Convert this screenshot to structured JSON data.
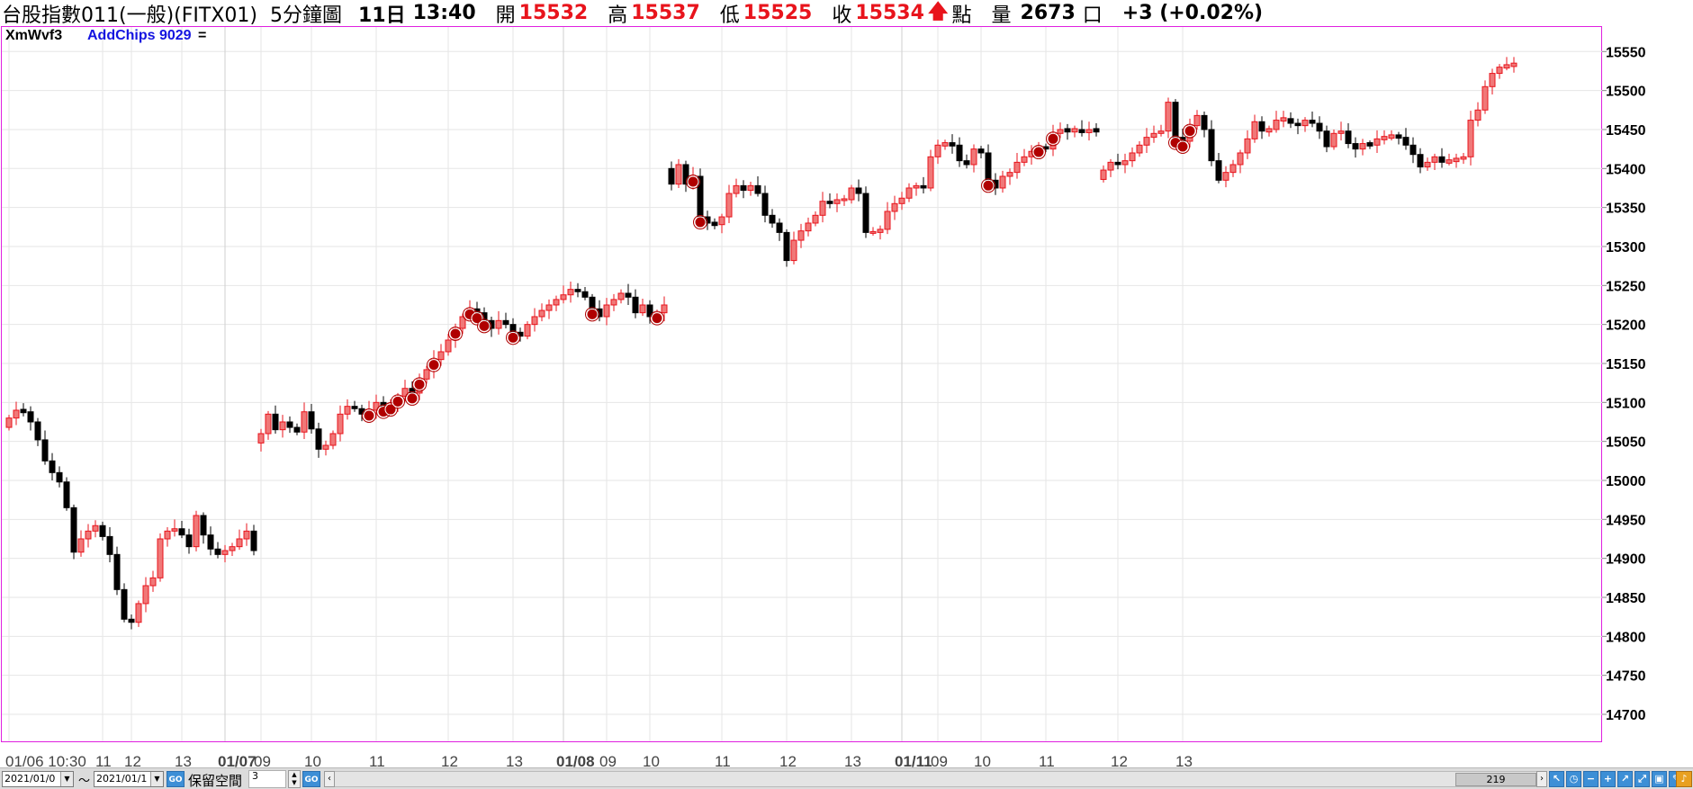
{
  "header": {
    "instrument": "台股指數011(一般)(FITX01)",
    "period": "5分鐘圖",
    "day": "11日",
    "time": "13:40",
    "open_label": "開",
    "open_value": "15532",
    "high_label": "高",
    "high_value": "15537",
    "low_label": "低",
    "low_value": "15525",
    "close_label": "收",
    "close_value": "15534",
    "points_label": "點",
    "volume_label": "量",
    "volume_value": "2673",
    "volume_unit": "口",
    "change": "+3 (+0.02%)",
    "up_color": "#e8141c"
  },
  "indicator": {
    "name": "XmWvf3",
    "chips_label": "AddChips 9029",
    "suffix": "="
  },
  "bottom_bar": {
    "start_date": "2021/01/0",
    "end_date": "2021/01/1",
    "range_sep": "～",
    "go_label": "GO",
    "reserve_label": "保留空間",
    "reserve_value": "3",
    "scroll_position": "219",
    "tools": [
      "cursor-icon",
      "clock-icon",
      "zoom-out-icon",
      "crosshair-icon",
      "line-chart-icon",
      "expand-icon",
      "window-icon",
      "pencil-icon",
      "alert-icon"
    ]
  },
  "chart_data": {
    "type": "candlestick",
    "ylim": [
      14660,
      15590
    ],
    "y_ticks": [
      14700,
      14750,
      14800,
      14850,
      14900,
      14950,
      15000,
      15050,
      15100,
      15150,
      15200,
      15250,
      15300,
      15350,
      15400,
      15450,
      15500,
      15550
    ],
    "x_labels": [
      {
        "bar": 0,
        "text": "01/06 10:30",
        "bold": false
      },
      {
        "bar": 13,
        "text": "11",
        "bold": false
      },
      {
        "bar": 17,
        "text": "12",
        "bold": false
      },
      {
        "bar": 24,
        "text": "13",
        "bold": false
      },
      {
        "bar": 30,
        "text": "01/07",
        "bold": true
      },
      {
        "bar": 35,
        "text": "09",
        "bold": false
      },
      {
        "bar": 42,
        "text": "10",
        "bold": false
      },
      {
        "bar": 51,
        "text": "11",
        "bold": false
      },
      {
        "bar": 61,
        "text": "12",
        "bold": false
      },
      {
        "bar": 70,
        "text": "13",
        "bold": false
      },
      {
        "bar": 77,
        "text": "01/08",
        "bold": true
      },
      {
        "bar": 83,
        "text": "09",
        "bold": false
      },
      {
        "bar": 89,
        "text": "10",
        "bold": false
      },
      {
        "bar": 99,
        "text": "11",
        "bold": false
      },
      {
        "bar": 108,
        "text": "12",
        "bold": false
      },
      {
        "bar": 117,
        "text": "13",
        "bold": false
      },
      {
        "bar": 124,
        "text": "01/11",
        "bold": true
      },
      {
        "bar": 129,
        "text": "09",
        "bold": false
      },
      {
        "bar": 135,
        "text": "10",
        "bold": false
      },
      {
        "bar": 144,
        "text": "11",
        "bold": false
      },
      {
        "bar": 154,
        "text": "12",
        "bold": false
      },
      {
        "bar": 163,
        "text": "13",
        "bold": false
      }
    ],
    "session_starts": [
      30,
      77,
      124
    ],
    "up_color": "#e8141c",
    "down_color": "#000000",
    "signal_color": "#b00000",
    "series": [
      {
        "name": "01/06",
        "x_start": 0,
        "closes": [
          15080,
          15090,
          15088,
          15075,
          15052,
          15025,
          15010,
          14998,
          14965,
          14908,
          14925,
          14935,
          14942,
          14928,
          14905,
          14860,
          14822,
          14818,
          14842,
          14865,
          14875,
          14925,
          14935,
          14938,
          14930,
          14915,
          14955,
          14930,
          14912,
          14905,
          14910,
          14915,
          14925,
          14935,
          14910
        ]
      },
      {
        "name": "01/07",
        "x_start": 35,
        "closes": [
          15060,
          15085,
          15065,
          15075,
          15068,
          15062,
          15088,
          15066,
          15040,
          15045,
          15060,
          15085,
          15095,
          15092,
          15085,
          15090,
          15100,
          15095,
          15098,
          15108,
          15118,
          15112,
          15130,
          15142,
          15155,
          15165,
          15180,
          15195,
          15210,
          15220,
          15215,
          15205,
          15195,
          15205,
          15200,
          15190,
          15185,
          15200,
          15210,
          15218,
          15225,
          15232,
          15238,
          15245,
          15242,
          15235,
          15220,
          15210,
          15225,
          15232,
          15240,
          15235,
          15215,
          15225,
          15210,
          15215,
          15225
        ]
      },
      {
        "name": "01/08",
        "x_start": 92,
        "closes": [
          15380,
          15405,
          15380,
          15390,
          15338,
          15330,
          15328,
          15338,
          15368,
          15378,
          15372,
          15378,
          15368,
          15340,
          15330,
          15318,
          15282,
          15308,
          15320,
          15330,
          15340,
          15358,
          15355,
          15360,
          15360,
          15375,
          15368,
          15318,
          15318,
          15322,
          15345,
          15355,
          15362,
          15375,
          15378,
          15375,
          15415,
          15430,
          15432,
          15430,
          15410,
          15405,
          15425,
          15420,
          15385,
          15375,
          15390,
          15395,
          15408,
          15415,
          15422,
          15428,
          15425,
          15445,
          15450,
          15448,
          15450,
          15446,
          15450,
          15448
        ]
      },
      {
        "name": "01/11",
        "x_start": 152,
        "closes": [
          15398,
          15408,
          15405,
          15410,
          15420,
          15430,
          15440,
          15445,
          15448,
          15485,
          15440,
          15435,
          15455,
          15468,
          15450,
          15410,
          15385,
          15395,
          15405,
          15420,
          15438,
          15460,
          15448,
          15450,
          15462,
          15464,
          15458,
          15455,
          15462,
          15458,
          15448,
          15428,
          15445,
          15448,
          15432,
          15425,
          15432,
          15430,
          15438,
          15440,
          15442,
          15440,
          15430,
          15418,
          15402,
          15408,
          15415,
          15408,
          15410,
          15412,
          15415,
          15462,
          15475,
          15505,
          15522,
          15530,
          15532,
          15534
        ]
      }
    ],
    "signal_bars": [
      50,
      52,
      53,
      54,
      56,
      57,
      59,
      62,
      64,
      65,
      66,
      70,
      81,
      90,
      95,
      96,
      136,
      143,
      145,
      162,
      163,
      164
    ]
  }
}
